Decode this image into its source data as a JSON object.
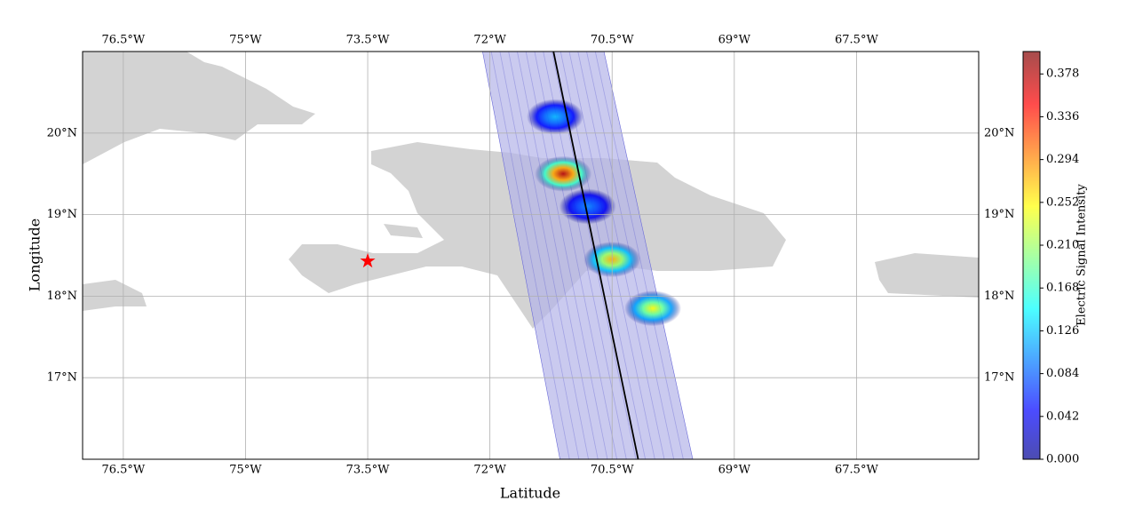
{
  "chart_data": {
    "type": "map",
    "xlabel": "Latitude",
    "ylabel": "Longitude",
    "xlim": [
      -77,
      -66
    ],
    "ylim": [
      16,
      21
    ],
    "xticks": [
      {
        "value": -76.5,
        "label": "76.5°W"
      },
      {
        "value": -75,
        "label": "75°W"
      },
      {
        "value": -73.5,
        "label": "73.5°W"
      },
      {
        "value": -72,
        "label": "72°W"
      },
      {
        "value": -70.5,
        "label": "70.5°W"
      },
      {
        "value": -69,
        "label": "69°W"
      },
      {
        "value": -67.5,
        "label": "67.5°W"
      }
    ],
    "yticks": [
      {
        "value": 17,
        "label": "17°N"
      },
      {
        "value": 18,
        "label": "18°N"
      },
      {
        "value": 19,
        "label": "19°N"
      },
      {
        "value": 20,
        "label": "20°N"
      }
    ],
    "grid": true,
    "colorbar": {
      "label": "Electric Signal Intensity",
      "clim": [
        0,
        0.4
      ],
      "ticks": [
        {
          "value": 0,
          "label": "0.000"
        },
        0.042,
        0.084,
        0.126,
        0.168,
        {
          "value": 0.21,
          "label": "0.210"
        },
        0.252,
        0.294,
        0.336,
        0.378
      ]
    },
    "swath": {
      "x": [
        -72.09,
        -70.6,
        -69.51,
        -71.14
      ],
      "y": [
        21,
        21,
        16,
        16
      ]
    },
    "track": {
      "x": [
        -71.22,
        -70.18
      ],
      "y": [
        21,
        16
      ],
      "color": "#000000"
    },
    "hotspots": {
      "x": [
        -71.1,
        -70.5,
        -70.0,
        -71.2,
        -70.8
      ],
      "y": [
        19.5,
        18.45,
        17.85,
        20.2,
        19.1
      ],
      "values": [
        0.38,
        0.28,
        0.25,
        0.12,
        0.1
      ]
    },
    "marker": {
      "x": -73.5,
      "y": 18.43,
      "color": "#ff0000"
    }
  }
}
